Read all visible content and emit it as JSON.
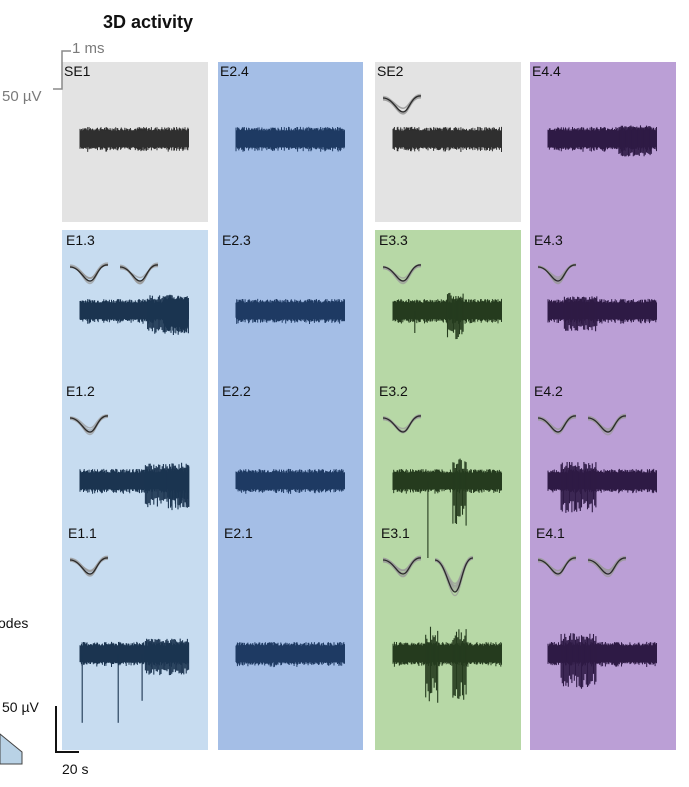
{
  "title": "3D activity",
  "side_label": "odes",
  "scale_top": {
    "time": "1 ms",
    "voltage": "50 µV"
  },
  "scale_bottom": {
    "voltage": "50 µV",
    "time": "20 s"
  },
  "colors": {
    "gray_panel": "#e3e3e3",
    "light_blue_panel": "#c7dcf0",
    "blue_panel": "#a4bee6",
    "green_panel": "#b7d8a6",
    "purple_panel": "#bb9fd6",
    "gray_trace": "#2f2f2f",
    "light_blue_trace": "#1b3450",
    "blue_trace": "#1e3a63",
    "green_trace": "#253b1e",
    "purple_trace": "#2e1a45"
  },
  "columns": [
    {
      "key": "c1",
      "cells": [
        {
          "label": "SE1",
          "panel": "gray_panel",
          "trace": "gray_trace",
          "spikes": [],
          "waveforms": 0
        },
        {
          "label": "E1.3",
          "panel": "light_blue_panel",
          "trace": "light_blue_trace",
          "spikes": [
            [
              0.62,
              1.0,
              0.9
            ],
            [
              0.78,
              1.0,
              1.0
            ]
          ],
          "waveforms": 2
        },
        {
          "label": "E1.2",
          "panel": "light_blue_panel",
          "trace": "light_blue_trace",
          "spikes": [
            [
              0.6,
              1.0,
              1.2
            ],
            [
              0.8,
              1.0,
              1.4
            ]
          ],
          "waveforms": 1
        },
        {
          "label": "E1.1",
          "panel": "light_blue_panel",
          "trace": "light_blue_trace",
          "spikes": [
            [
              0.02,
              0.02,
              2.5
            ],
            [
              0.35,
              0.35,
              2.5
            ],
            [
              0.57,
              0.57,
              1.7
            ],
            [
              0.6,
              1.0,
              0.8
            ]
          ],
          "waveforms": 1
        }
      ]
    },
    {
      "key": "c2",
      "cells": [
        {
          "label": "E2.4",
          "panel": "blue_panel",
          "trace": "blue_trace",
          "spikes": [],
          "waveforms": 0
        },
        {
          "label": "E2.3",
          "panel": "blue_panel",
          "trace": "blue_trace",
          "spikes": [],
          "waveforms": 0
        },
        {
          "label": "E2.2",
          "panel": "blue_panel",
          "trace": "blue_trace",
          "spikes": [],
          "waveforms": 0
        },
        {
          "label": "E2.1",
          "panel": "blue_panel",
          "trace": "blue_trace",
          "spikes": [],
          "waveforms": 0
        }
      ]
    },
    {
      "key": "c3",
      "cells": [
        {
          "label": "SE2",
          "panel": "gray_panel",
          "trace": "gray_trace",
          "spikes": [],
          "waveforms": 1
        },
        {
          "label": "E3.3",
          "panel": "green_panel",
          "trace": "green_trace",
          "spikes": [
            [
              0.5,
              0.65,
              1.3
            ],
            [
              0.2,
              0.2,
              0.8
            ]
          ],
          "waveforms": 1
        },
        {
          "label": "E3.2",
          "panel": "green_panel",
          "trace": "green_trace",
          "spikes": [
            [
              0.32,
              0.32,
              2.8
            ],
            [
              0.55,
              0.68,
              2.6
            ]
          ],
          "waveforms": 1
        },
        {
          "label": "E3.1",
          "panel": "green_panel",
          "trace": "green_trace",
          "spikes": [
            [
              0.3,
              0.42,
              3.0
            ],
            [
              0.55,
              0.68,
              3.2
            ]
          ],
          "waveforms": 2
        }
      ]
    },
    {
      "key": "c4",
      "cells": [
        {
          "label": "E4.4",
          "panel": "purple_panel",
          "trace": "purple_trace",
          "spikes": [
            [
              0.65,
              0.95,
              0.5
            ]
          ],
          "waveforms": 0
        },
        {
          "label": "E4.3",
          "panel": "purple_panel",
          "trace": "purple_trace",
          "spikes": [
            [
              0.15,
              0.45,
              0.7
            ]
          ],
          "waveforms": 1
        },
        {
          "label": "E4.2",
          "panel": "purple_panel",
          "trace": "purple_trace",
          "spikes": [
            [
              0.12,
              0.45,
              1.6
            ]
          ],
          "waveforms": 2
        },
        {
          "label": "E4.1",
          "panel": "purple_panel",
          "trace": "purple_trace",
          "spikes": [
            [
              0.12,
              0.45,
              1.8
            ]
          ],
          "waveforms": 2
        }
      ]
    }
  ]
}
